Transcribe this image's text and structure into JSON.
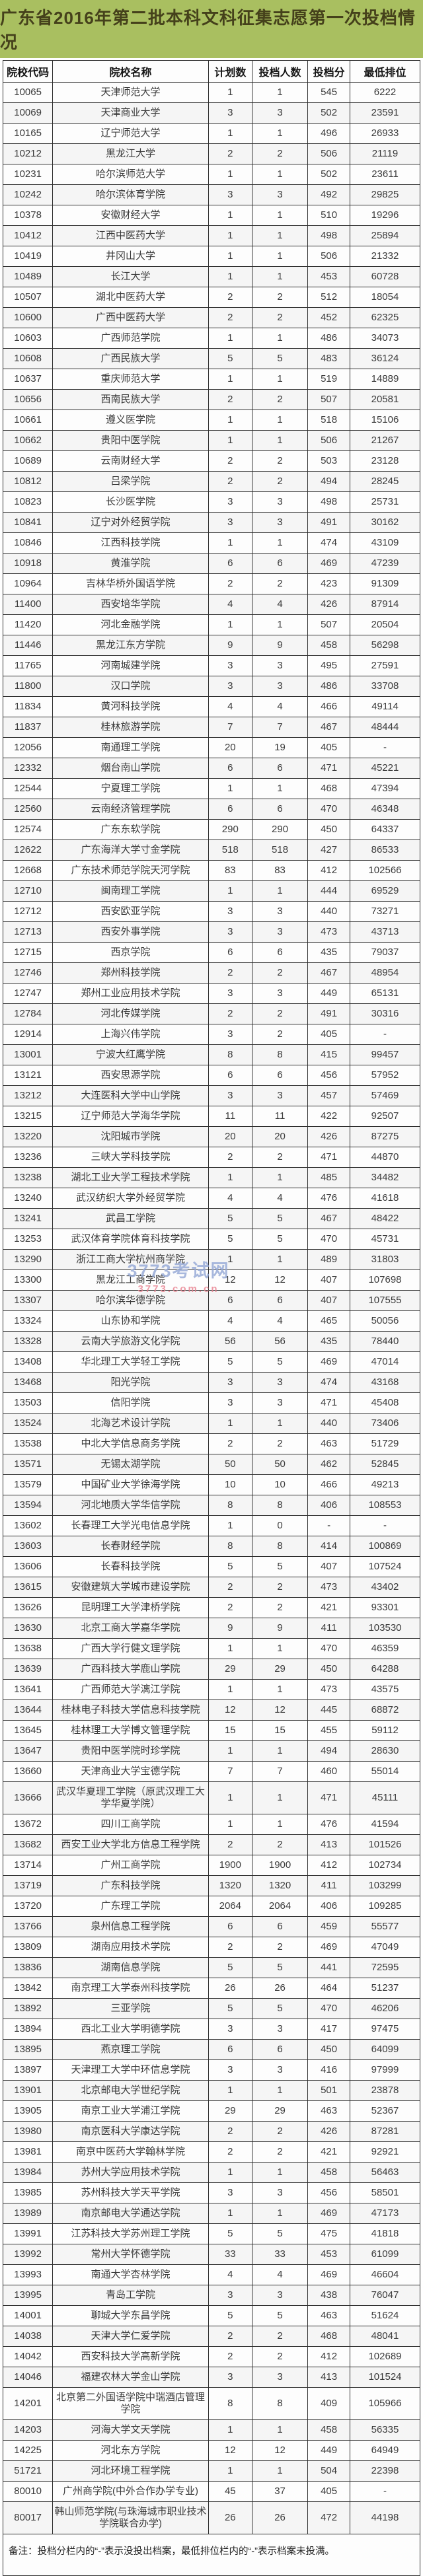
{
  "page": {
    "title": "广东省2016年第二批本科文科征集志愿第一次投档情况"
  },
  "colors": {
    "banner_background": "#a9bf60",
    "banner_text": "#45411b",
    "table_border": "#2e2e2e",
    "cell_text": "#3b3b3b",
    "watermark_blue": "#93a7d6",
    "watermark_pink": "#e8808e"
  },
  "watermark": {
    "line1": "3773考试网",
    "line2": "3773.com.cn"
  },
  "footnote": "备注：投档分栏内的“-”表示没投出档案，最低排位栏内的“-”表示档案未投满。",
  "table": {
    "columns": [
      "院校代码",
      "院校名称",
      "计划数",
      "投档人数",
      "投档分",
      "最低排位"
    ],
    "column_keys": [
      "code",
      "name",
      "plan",
      "filed",
      "score",
      "rank"
    ],
    "rows": [
      [
        "10065",
        "天津师范大学",
        "1",
        "1",
        "545",
        "6222"
      ],
      [
        "10069",
        "天津商业大学",
        "3",
        "3",
        "502",
        "23591"
      ],
      [
        "10165",
        "辽宁师范大学",
        "1",
        "1",
        "496",
        "26933"
      ],
      [
        "10212",
        "黑龙江大学",
        "2",
        "2",
        "506",
        "21119"
      ],
      [
        "10231",
        "哈尔滨师范大学",
        "1",
        "1",
        "502",
        "23611"
      ],
      [
        "10242",
        "哈尔滨体育学院",
        "3",
        "3",
        "492",
        "29825"
      ],
      [
        "10378",
        "安徽财经大学",
        "1",
        "1",
        "510",
        "19296"
      ],
      [
        "10412",
        "江西中医药大学",
        "1",
        "1",
        "498",
        "25894"
      ],
      [
        "10419",
        "井冈山大学",
        "1",
        "1",
        "506",
        "21332"
      ],
      [
        "10489",
        "长江大学",
        "1",
        "1",
        "453",
        "60728"
      ],
      [
        "10507",
        "湖北中医药大学",
        "2",
        "2",
        "512",
        "18054"
      ],
      [
        "10600",
        "广西中医药大学",
        "2",
        "2",
        "452",
        "62325"
      ],
      [
        "10603",
        "广西师范学院",
        "1",
        "1",
        "486",
        "34073"
      ],
      [
        "10608",
        "广西民族大学",
        "5",
        "5",
        "483",
        "36124"
      ],
      [
        "10637",
        "重庆师范大学",
        "1",
        "1",
        "519",
        "14889"
      ],
      [
        "10656",
        "西南民族大学",
        "2",
        "2",
        "507",
        "20581"
      ],
      [
        "10661",
        "遵义医学院",
        "1",
        "1",
        "518",
        "15106"
      ],
      [
        "10662",
        "贵阳中医学院",
        "1",
        "1",
        "506",
        "21267"
      ],
      [
        "10689",
        "云南财经大学",
        "2",
        "2",
        "503",
        "23128"
      ],
      [
        "10812",
        "吕梁学院",
        "2",
        "2",
        "494",
        "28245"
      ],
      [
        "10823",
        "长沙医学院",
        "3",
        "3",
        "498",
        "25731"
      ],
      [
        "10841",
        "辽宁对外经贸学院",
        "3",
        "3",
        "491",
        "30162"
      ],
      [
        "10846",
        "江西科技学院",
        "1",
        "1",
        "474",
        "43109"
      ],
      [
        "10918",
        "黄淮学院",
        "6",
        "6",
        "469",
        "47239"
      ],
      [
        "10964",
        "吉林华桥外国语学院",
        "2",
        "2",
        "423",
        "91309"
      ],
      [
        "11400",
        "西安培华学院",
        "4",
        "4",
        "426",
        "87914"
      ],
      [
        "11420",
        "河北金融学院",
        "1",
        "1",
        "507",
        "20504"
      ],
      [
        "11446",
        "黑龙江东方学院",
        "9",
        "9",
        "458",
        "56298"
      ],
      [
        "11765",
        "河南城建学院",
        "3",
        "3",
        "495",
        "27591"
      ],
      [
        "11800",
        "汉口学院",
        "3",
        "3",
        "486",
        "33708"
      ],
      [
        "11834",
        "黄河科技学院",
        "4",
        "4",
        "466",
        "49114"
      ],
      [
        "11837",
        "桂林旅游学院",
        "7",
        "7",
        "467",
        "48444"
      ],
      [
        "12056",
        "南通理工学院",
        "20",
        "19",
        "405",
        "-"
      ],
      [
        "12332",
        "烟台南山学院",
        "6",
        "6",
        "471",
        "45221"
      ],
      [
        "12544",
        "宁夏理工学院",
        "1",
        "1",
        "468",
        "47394"
      ],
      [
        "12560",
        "云南经济管理学院",
        "6",
        "6",
        "470",
        "46348"
      ],
      [
        "12574",
        "广东东软学院",
        "290",
        "290",
        "450",
        "64337"
      ],
      [
        "12622",
        "广东海洋大学寸金学院",
        "518",
        "518",
        "427",
        "86533"
      ],
      [
        "12668",
        "广东技术师范学院天河学院",
        "83",
        "83",
        "412",
        "102566"
      ],
      [
        "12710",
        "闽南理工学院",
        "1",
        "1",
        "444",
        "69529"
      ],
      [
        "12712",
        "西安欧亚学院",
        "3",
        "3",
        "440",
        "73271"
      ],
      [
        "12713",
        "西安外事学院",
        "3",
        "3",
        "473",
        "43713"
      ],
      [
        "12715",
        "西京学院",
        "6",
        "6",
        "435",
        "79037"
      ],
      [
        "12746",
        "郑州科技学院",
        "2",
        "2",
        "467",
        "48954"
      ],
      [
        "12747",
        "郑州工业应用技术学院",
        "3",
        "3",
        "449",
        "65131"
      ],
      [
        "12784",
        "河北传媒学院",
        "2",
        "2",
        "491",
        "30316"
      ],
      [
        "12914",
        "上海兴伟学院",
        "3",
        "2",
        "405",
        "-"
      ],
      [
        "13001",
        "宁波大红鹰学院",
        "8",
        "8",
        "415",
        "99457"
      ],
      [
        "13121",
        "西安思源学院",
        "6",
        "6",
        "456",
        "57952"
      ],
      [
        "13212",
        "大连医科大学中山学院",
        "3",
        "3",
        "457",
        "57469"
      ],
      [
        "13215",
        "辽宁师范大学海华学院",
        "11",
        "11",
        "422",
        "92507"
      ],
      [
        "13220",
        "沈阳城市学院",
        "20",
        "20",
        "426",
        "87275"
      ],
      [
        "13236",
        "三峡大学科技学院",
        "2",
        "2",
        "471",
        "44870"
      ],
      [
        "13238",
        "湖北工业大学工程技术学院",
        "1",
        "1",
        "485",
        "34482"
      ],
      [
        "13240",
        "武汉纺织大学外经贸学院",
        "4",
        "4",
        "476",
        "41618"
      ],
      [
        "13241",
        "武昌工学院",
        "5",
        "5",
        "467",
        "48422"
      ],
      [
        "13253",
        "武汉体育学院体育科技学院",
        "5",
        "5",
        "470",
        "45731"
      ],
      [
        "13290",
        "浙江工商大学杭州商学院",
        "1",
        "1",
        "489",
        "31803"
      ],
      [
        "13300",
        "黑龙江工商学院",
        "12",
        "12",
        "407",
        "107698"
      ],
      [
        "13307",
        "哈尔滨华德学院",
        "6",
        "6",
        "407",
        "107555"
      ],
      [
        "13324",
        "山东协和学院",
        "4",
        "4",
        "465",
        "50056"
      ],
      [
        "13328",
        "云南大学旅游文化学院",
        "56",
        "56",
        "435",
        "78440"
      ],
      [
        "13408",
        "华北理工大学轻工学院",
        "5",
        "5",
        "469",
        "47014"
      ],
      [
        "13468",
        "阳光学院",
        "3",
        "3",
        "474",
        "43168"
      ],
      [
        "13503",
        "信阳学院",
        "3",
        "3",
        "471",
        "45408"
      ],
      [
        "13524",
        "北海艺术设计学院",
        "1",
        "1",
        "440",
        "73406"
      ],
      [
        "13538",
        "中北大学信息商务学院",
        "2",
        "2",
        "463",
        "51729"
      ],
      [
        "13571",
        "无锡太湖学院",
        "50",
        "50",
        "462",
        "52845"
      ],
      [
        "13579",
        "中国矿业大学徐海学院",
        "10",
        "10",
        "466",
        "49213"
      ],
      [
        "13594",
        "河北地质大学华信学院",
        "8",
        "8",
        "406",
        "108553"
      ],
      [
        "13602",
        "长春理工大学光电信息学院",
        "1",
        "0",
        "-",
        "-"
      ],
      [
        "13603",
        "长春财经学院",
        "8",
        "8",
        "414",
        "100869"
      ],
      [
        "13606",
        "长春科技学院",
        "5",
        "5",
        "407",
        "107524"
      ],
      [
        "13615",
        "安徽建筑大学城市建设学院",
        "2",
        "2",
        "473",
        "43402"
      ],
      [
        "13626",
        "昆明理工大学津桥学院",
        "2",
        "2",
        "421",
        "93301"
      ],
      [
        "13630",
        "北京工商大学嘉华学院",
        "9",
        "9",
        "411",
        "103530"
      ],
      [
        "13638",
        "广西大学行健文理学院",
        "1",
        "1",
        "470",
        "46359"
      ],
      [
        "13639",
        "广西科技大学鹿山学院",
        "29",
        "29",
        "450",
        "64288"
      ],
      [
        "13641",
        "广西师范大学漓江学院",
        "1",
        "1",
        "473",
        "43575"
      ],
      [
        "13644",
        "桂林电子科技大学信息科技学院",
        "12",
        "12",
        "445",
        "68872"
      ],
      [
        "13645",
        "桂林理工大学博文管理学院",
        "15",
        "15",
        "455",
        "59112"
      ],
      [
        "13647",
        "贵阳中医学院时珍学院",
        "1",
        "1",
        "494",
        "28630"
      ],
      [
        "13660",
        "天津商业大学宝德学院",
        "7",
        "7",
        "460",
        "55014"
      ],
      [
        "13666",
        "武汉华夏理工学院（原武汉理工大学华夏学院）",
        "1",
        "1",
        "471",
        "45111"
      ],
      [
        "13672",
        "四川工商学院",
        "1",
        "1",
        "476",
        "41594"
      ],
      [
        "13682",
        "西安工业大学北方信息工程学院",
        "2",
        "2",
        "413",
        "101526"
      ],
      [
        "13714",
        "广州工商学院",
        "1900",
        "1900",
        "412",
        "102734"
      ],
      [
        "13719",
        "广东科技学院",
        "1320",
        "1320",
        "411",
        "103299"
      ],
      [
        "13720",
        "广东理工学院",
        "2064",
        "2064",
        "406",
        "109285"
      ],
      [
        "13766",
        "泉州信息工程学院",
        "6",
        "6",
        "459",
        "55577"
      ],
      [
        "13809",
        "湖南应用技术学院",
        "2",
        "2",
        "469",
        "47049"
      ],
      [
        "13836",
        "湖南信息学院",
        "5",
        "5",
        "441",
        "72595"
      ],
      [
        "13842",
        "南京理工大学泰州科技学院",
        "26",
        "26",
        "464",
        "51237"
      ],
      [
        "13892",
        "三亚学院",
        "5",
        "5",
        "470",
        "46206"
      ],
      [
        "13894",
        "西北工业大学明德学院",
        "3",
        "3",
        "417",
        "97475"
      ],
      [
        "13895",
        "燕京理工学院",
        "6",
        "6",
        "450",
        "64099"
      ],
      [
        "13897",
        "天津理工大学中环信息学院",
        "3",
        "3",
        "416",
        "97999"
      ],
      [
        "13901",
        "北京邮电大学世纪学院",
        "1",
        "1",
        "501",
        "23878"
      ],
      [
        "13905",
        "南京工业大学浦江学院",
        "29",
        "29",
        "463",
        "52367"
      ],
      [
        "13980",
        "南京医科大学康达学院",
        "2",
        "2",
        "426",
        "87281"
      ],
      [
        "13981",
        "南京中医药大学翰林学院",
        "2",
        "2",
        "421",
        "92921"
      ],
      [
        "13984",
        "苏州大学应用技术学院",
        "1",
        "1",
        "458",
        "56463"
      ],
      [
        "13985",
        "苏州科技大学天平学院",
        "3",
        "3",
        "456",
        "58501"
      ],
      [
        "13989",
        "南京邮电大学通达学院",
        "1",
        "1",
        "469",
        "47173"
      ],
      [
        "13991",
        "江苏科技大学苏州理工学院",
        "5",
        "5",
        "475",
        "41818"
      ],
      [
        "13992",
        "常州大学怀德学院",
        "33",
        "33",
        "453",
        "61099"
      ],
      [
        "13993",
        "南通大学杏林学院",
        "4",
        "4",
        "469",
        "46604"
      ],
      [
        "13995",
        "青岛工学院",
        "3",
        "3",
        "438",
        "76047"
      ],
      [
        "14001",
        "聊城大学东昌学院",
        "5",
        "5",
        "463",
        "51624"
      ],
      [
        "14038",
        "天津大学仁爱学院",
        "2",
        "2",
        "468",
        "48041"
      ],
      [
        "14042",
        "西安科技大学高新学院",
        "2",
        "2",
        "412",
        "102689"
      ],
      [
        "14046",
        "福建农林大学金山学院",
        "3",
        "3",
        "413",
        "101524"
      ],
      [
        "14201",
        "北京第二外国语学院中瑞酒店管理学院",
        "8",
        "8",
        "409",
        "105966"
      ],
      [
        "14203",
        "河海大学文天学院",
        "1",
        "1",
        "458",
        "56335"
      ],
      [
        "14225",
        "河北东方学院",
        "12",
        "12",
        "449",
        "64949"
      ],
      [
        "51721",
        "河北环境工程学院",
        "1",
        "1",
        "504",
        "22398"
      ],
      [
        "80010",
        "广州商学院(中外合作办学专业)",
        "45",
        "37",
        "405",
        "-"
      ],
      [
        "80017",
        "韩山师范学院(与珠海城市职业技术学院联合办学)",
        "26",
        "26",
        "472",
        "44198"
      ]
    ]
  }
}
